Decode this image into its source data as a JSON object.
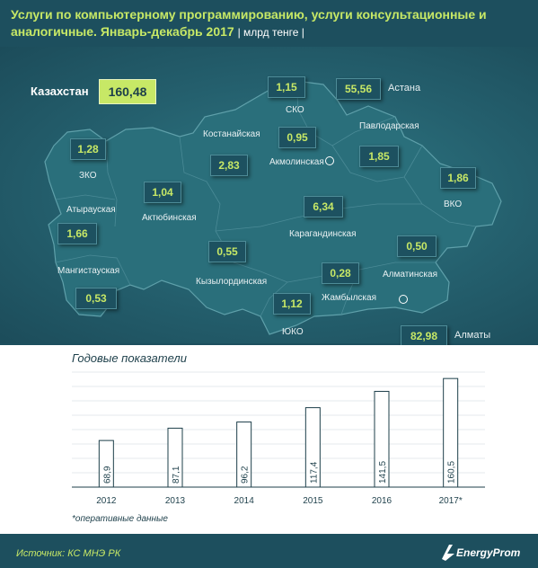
{
  "header": {
    "title": "Услуги по компьютерному программированию, услуги консультационные и аналогичные. Январь-декабрь 2017",
    "unit": "| млрд тенге |"
  },
  "map": {
    "total": {
      "label": "Казахстан",
      "value": "160,48"
    },
    "regions": [
      {
        "id": "zko",
        "name": "ЗКО",
        "value": "1,28"
      },
      {
        "id": "atyrau",
        "name": "Атырауская",
        "value": "1,66"
      },
      {
        "id": "mangistau",
        "name": "Мангистауская",
        "value": "0,53"
      },
      {
        "id": "aktobe",
        "name": "Актюбинская",
        "value": "1,04"
      },
      {
        "id": "kostanay",
        "name": "Костанайская",
        "value": "2,83"
      },
      {
        "id": "sko",
        "name": "СКО",
        "value": "1,15"
      },
      {
        "id": "akmola",
        "name": "Акмолинская",
        "value": "0,95"
      },
      {
        "id": "astana",
        "name": "Астана",
        "value": "55,56"
      },
      {
        "id": "pavlodar",
        "name": "Павлодарская",
        "value": "1,85"
      },
      {
        "id": "vko",
        "name": "ВКО",
        "value": "1,86"
      },
      {
        "id": "karaganda",
        "name": "Карагандинская",
        "value": "6,34"
      },
      {
        "id": "kyzylorda",
        "name": "Кызылординская",
        "value": "0,55"
      },
      {
        "id": "zhambyl",
        "name": "Жамбылская",
        "value": "0,28"
      },
      {
        "id": "almaty_obl",
        "name": "Алматинская",
        "value": "0,50"
      },
      {
        "id": "uko",
        "name": "ЮКО",
        "value": "1,12"
      },
      {
        "id": "almaty",
        "name": "Алматы",
        "value": "82,98"
      }
    ]
  },
  "chart_data": {
    "type": "bar",
    "title": "Годовые показатели",
    "categories": [
      "2012",
      "2013",
      "2014",
      "2015",
      "2016",
      "2017*"
    ],
    "values": [
      68.9,
      87.1,
      96.2,
      117.4,
      141.5,
      160.5
    ],
    "value_labels": [
      "68,9",
      "87,1",
      "96,2",
      "117,4",
      "141,5",
      "160,5"
    ],
    "ylim": [
      0,
      170
    ],
    "grid": true
  },
  "note": "*оперативные данные",
  "footer": {
    "source": "Источник: КС МНЭ РК",
    "logo": "EnergyProm"
  },
  "colors": {
    "background": "#1d4f5e",
    "accent": "#c7e866",
    "bar": "#ffffff"
  }
}
